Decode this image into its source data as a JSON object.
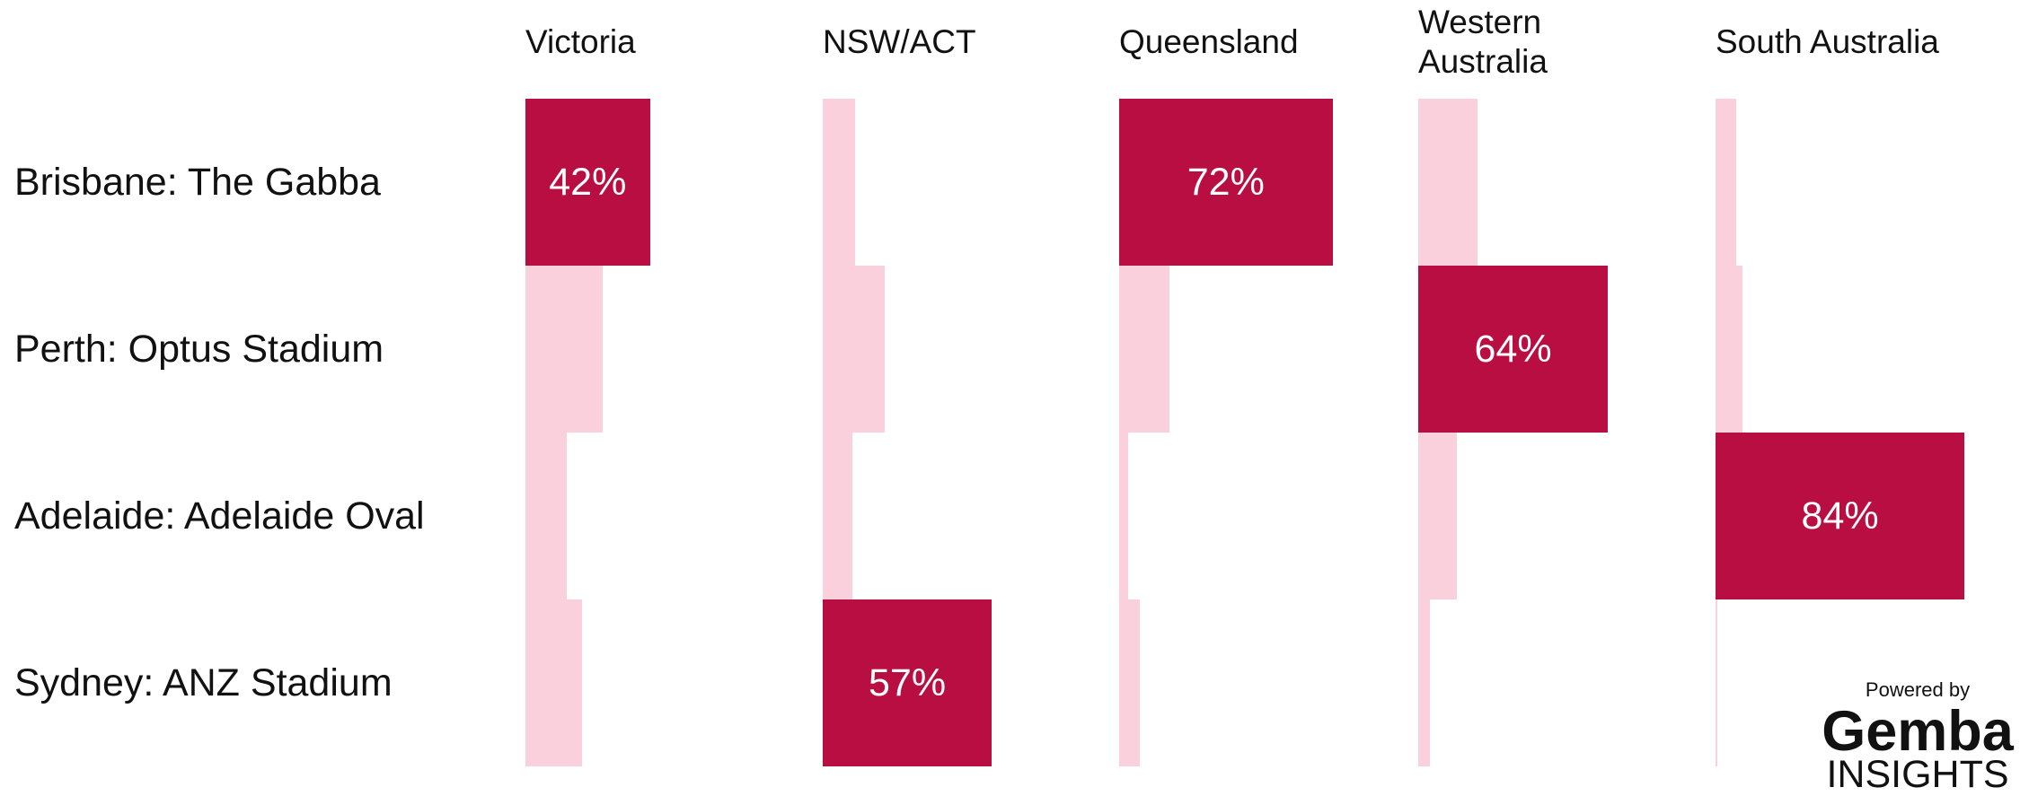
{
  "chart_data": {
    "type": "bar",
    "categories": [
      "Brisbane: The Gabba",
      "Perth: Optus Stadium",
      "Adelaide: Adelaide Oval",
      "Sydney: ANZ Stadium"
    ],
    "highlight_color": "#b90e41",
    "series": [
      {
        "name": "Victoria",
        "color": "#fbd0dd",
        "values": [
          42,
          26,
          14,
          19
        ],
        "value_labels": [
          "42%",
          null,
          null,
          null
        ]
      },
      {
        "name": "NSW/ACT",
        "color": "#fbd0dd",
        "values": [
          11,
          21,
          10,
          57
        ],
        "value_labels": [
          null,
          null,
          null,
          "57%"
        ]
      },
      {
        "name": "Queensland",
        "color": "#fbd0dd",
        "values": [
          72,
          17,
          3,
          7
        ],
        "value_labels": [
          "72%",
          null,
          null,
          null
        ]
      },
      {
        "name": "Western Australia",
        "color": "#fbd0dd",
        "values": [
          20,
          64,
          13,
          4
        ],
        "value_labels": [
          null,
          "64%",
          null,
          null
        ]
      },
      {
        "name": "South Australia",
        "color": "#fbd0dd",
        "values": [
          7,
          9,
          84,
          0.5
        ],
        "value_labels": [
          null,
          null,
          "84%",
          null
        ]
      }
    ]
  },
  "logo": {
    "powered": "Powered by",
    "brand": "Gemba",
    "sub": "INSIGHTS"
  }
}
